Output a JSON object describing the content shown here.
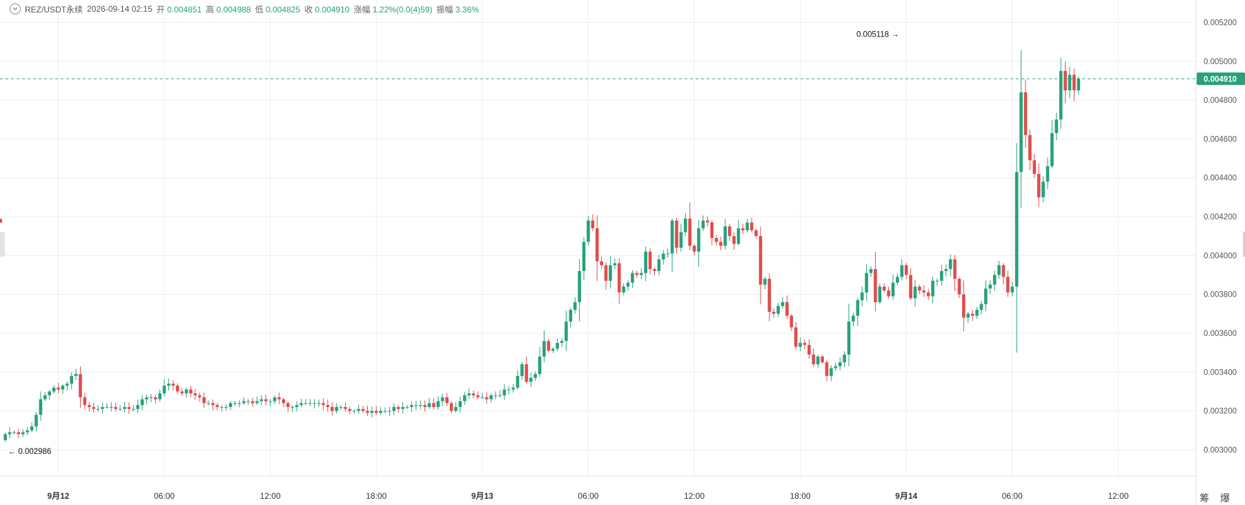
{
  "header": {
    "symbol": "REZ/USDT永续",
    "time": "2026-09-14 02:15",
    "open_label": "开",
    "open": "0.004851",
    "high_label": "高",
    "high": "0.004988",
    "low_label": "低",
    "low": "0.004825",
    "close_label": "收",
    "close": "0.004910",
    "change_label": "涨幅",
    "change": "1.22%(0.0(4)59)",
    "amplitude_label": "振幅",
    "amplitude": "3.36%"
  },
  "corner_text": "筹 爆",
  "colors": {
    "up": "#26a17b",
    "down": "#e04c4c",
    "grid": "#eeeeee",
    "axis_text": "#555555"
  },
  "chart_data": {
    "type": "candlestick",
    "title": "REZ/USDT永续",
    "y_axis_ticks": [
      "0.005200",
      "0.005000",
      "0.004800",
      "0.004600",
      "0.004400",
      "0.004200",
      "0.004000",
      "0.003800",
      "0.003600",
      "0.003400",
      "0.003200",
      "0.003000"
    ],
    "ylim": [
      0.00295,
      0.00523
    ],
    "x_axis_ticks": [
      {
        "label": "9月12",
        "hour": 0,
        "bold": true
      },
      {
        "label": "06:00",
        "hour": 6
      },
      {
        "label": "12:00",
        "hour": 12
      },
      {
        "label": "18:00",
        "hour": 18
      },
      {
        "label": "9月13",
        "hour": 24,
        "bold": true
      },
      {
        "label": "06:00",
        "hour": 30
      },
      {
        "label": "12:00",
        "hour": 36
      },
      {
        "label": "18:00",
        "hour": 42
      },
      {
        "label": "9月14",
        "hour": 48,
        "bold": true
      },
      {
        "label": "06:00",
        "hour": 54
      },
      {
        "label": "12:00",
        "hour": 60
      }
    ],
    "xlim_hours": [
      -3.3,
      64.4
    ],
    "last_price": "0.004910",
    "annotations": [
      {
        "text": "0.005118 →",
        "kind": "max",
        "value": 0.005118,
        "hour": 47.75
      },
      {
        "text": "← 0.002986",
        "kind": "min",
        "value": 0.002986,
        "hour": -3.0
      }
    ],
    "candle_interval_hours": 0.25,
    "start_hour": -3.0,
    "closes": [
      0.00308,
      0.00309,
      0.00309,
      0.00308,
      0.00309,
      0.0031,
      0.00312,
      0.00318,
      0.00326,
      0.00328,
      0.0033,
      0.00332,
      0.00331,
      0.00333,
      0.00334,
      0.00338,
      0.00339,
      0.00327,
      0.00323,
      0.00322,
      0.00321,
      0.00321,
      0.00322,
      0.00322,
      0.00322,
      0.00321,
      0.00321,
      0.00322,
      0.00321,
      0.00321,
      0.00323,
      0.00326,
      0.00327,
      0.00327,
      0.00326,
      0.00329,
      0.00333,
      0.00334,
      0.00333,
      0.0033,
      0.00329,
      0.00331,
      0.00329,
      0.00328,
      0.00327,
      0.00324,
      0.00324,
      0.00323,
      0.00322,
      0.00322,
      0.00322,
      0.00324,
      0.00324,
      0.00324,
      0.00325,
      0.00325,
      0.00324,
      0.00325,
      0.00326,
      0.00325,
      0.00325,
      0.00327,
      0.00326,
      0.00324,
      0.00322,
      0.00322,
      0.00323,
      0.00324,
      0.00324,
      0.00324,
      0.00324,
      0.00324,
      0.00323,
      0.00322,
      0.0032,
      0.00322,
      0.00322,
      0.00321,
      0.0032,
      0.0032,
      0.00321,
      0.0032,
      0.00319,
      0.0032,
      0.00319,
      0.0032,
      0.0032,
      0.0032,
      0.00322,
      0.00321,
      0.00322,
      0.00322,
      0.00323,
      0.00323,
      0.00323,
      0.00322,
      0.00324,
      0.00322,
      0.00325,
      0.00327,
      0.00324,
      0.0032,
      0.00322,
      0.00325,
      0.00328,
      0.00329,
      0.00328,
      0.00327,
      0.00327,
      0.00326,
      0.00328,
      0.00328,
      0.00328,
      0.00331,
      0.00331,
      0.00332,
      0.00338,
      0.00344,
      0.00335,
      0.00337,
      0.00339,
      0.00348,
      0.00356,
      0.00351,
      0.00352,
      0.00355,
      0.00356,
      0.00366,
      0.00372,
      0.00376,
      0.00392,
      0.00407,
      0.00418,
      0.00414,
      0.00397,
      0.00395,
      0.00387,
      0.00395,
      0.00396,
      0.00381,
      0.00384,
      0.00386,
      0.00391,
      0.0039,
      0.00391,
      0.00402,
      0.00393,
      0.00392,
      0.00398,
      0.00401,
      0.00401,
      0.00418,
      0.00404,
      0.00412,
      0.00419,
      0.00405,
      0.00402,
      0.00414,
      0.00418,
      0.00417,
      0.00409,
      0.00407,
      0.00405,
      0.00415,
      0.0041,
      0.00406,
      0.00414,
      0.00413,
      0.00417,
      0.00413,
      0.0041,
      0.00385,
      0.00388,
      0.00371,
      0.0037,
      0.00374,
      0.00376,
      0.00369,
      0.00363,
      0.00353,
      0.00355,
      0.00354,
      0.00349,
      0.00344,
      0.00348,
      0.00345,
      0.00338,
      0.00342,
      0.00343,
      0.00345,
      0.00349,
      0.00366,
      0.00369,
      0.00377,
      0.00381,
      0.00391,
      0.00393,
      0.00376,
      0.00384,
      0.00382,
      0.00379,
      0.00386,
      0.00389,
      0.00395,
      0.0039,
      0.00378,
      0.00384,
      0.00382,
      0.00381,
      0.00379,
      0.00387,
      0.00387,
      0.00392,
      0.00393,
      0.00398,
      0.00388,
      0.0038,
      0.00368,
      0.0037,
      0.00369,
      0.00372,
      0.00375,
      0.00383,
      0.00385,
      0.0039,
      0.00395,
      0.00389,
      0.00381,
      0.00384,
      0.00443,
      0.00484,
      0.00462,
      0.00449,
      0.00442,
      0.0043,
      0.00438,
      0.00446,
      0.00463,
      0.0047,
      0.00495,
      0.00485,
      0.00493,
      0.00485,
      0.00491
    ]
  }
}
